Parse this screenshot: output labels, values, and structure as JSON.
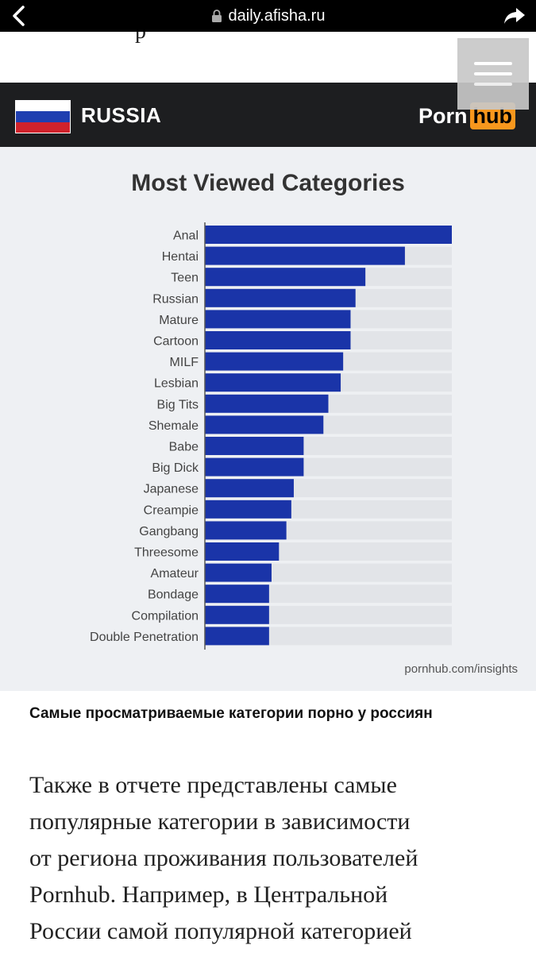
{
  "browser": {
    "url": "daily.afisha.ru"
  },
  "page": {
    "cut_text": "р"
  },
  "infographic": {
    "country": "RUSSIA",
    "logo_part1": "Porn",
    "logo_part2": "hub",
    "flag_colors": [
      "#ffffff",
      "#1f3fb0",
      "#d0222b"
    ],
    "source": "pornhub.com/insights"
  },
  "chart_data": {
    "type": "bar",
    "orientation": "horizontal",
    "title": "Most Viewed Categories",
    "categories": [
      "Anal",
      "Hentai",
      "Teen",
      "Russian",
      "Mature",
      "Cartoon",
      "MILF",
      "Lesbian",
      "Big Tits",
      "Shemale",
      "Babe",
      "Big Dick",
      "Japanese",
      "Creampie",
      "Gangbang",
      "Threesome",
      "Amateur",
      "Bondage",
      "Compilation",
      "Double Penetration"
    ],
    "values": [
      100,
      81,
      65,
      61,
      59,
      59,
      56,
      55,
      50,
      48,
      40,
      40,
      36,
      35,
      33,
      30,
      27,
      26,
      26,
      26
    ],
    "xlim": [
      0,
      100
    ],
    "bar_color": "#1a34a8",
    "track_color": "#e2e4e8",
    "xlabel": "",
    "ylabel": "",
    "grid": false,
    "legend": "none"
  },
  "article": {
    "caption": "Самые просматриваемые категории порно у россиян",
    "lines": [
      "Также в отчете представлены самые",
      "популярные категории в зависимости",
      "от региона проживания пользователей",
      "Pornhub. Например, в Центральной",
      "России самой популярной категорией"
    ]
  }
}
